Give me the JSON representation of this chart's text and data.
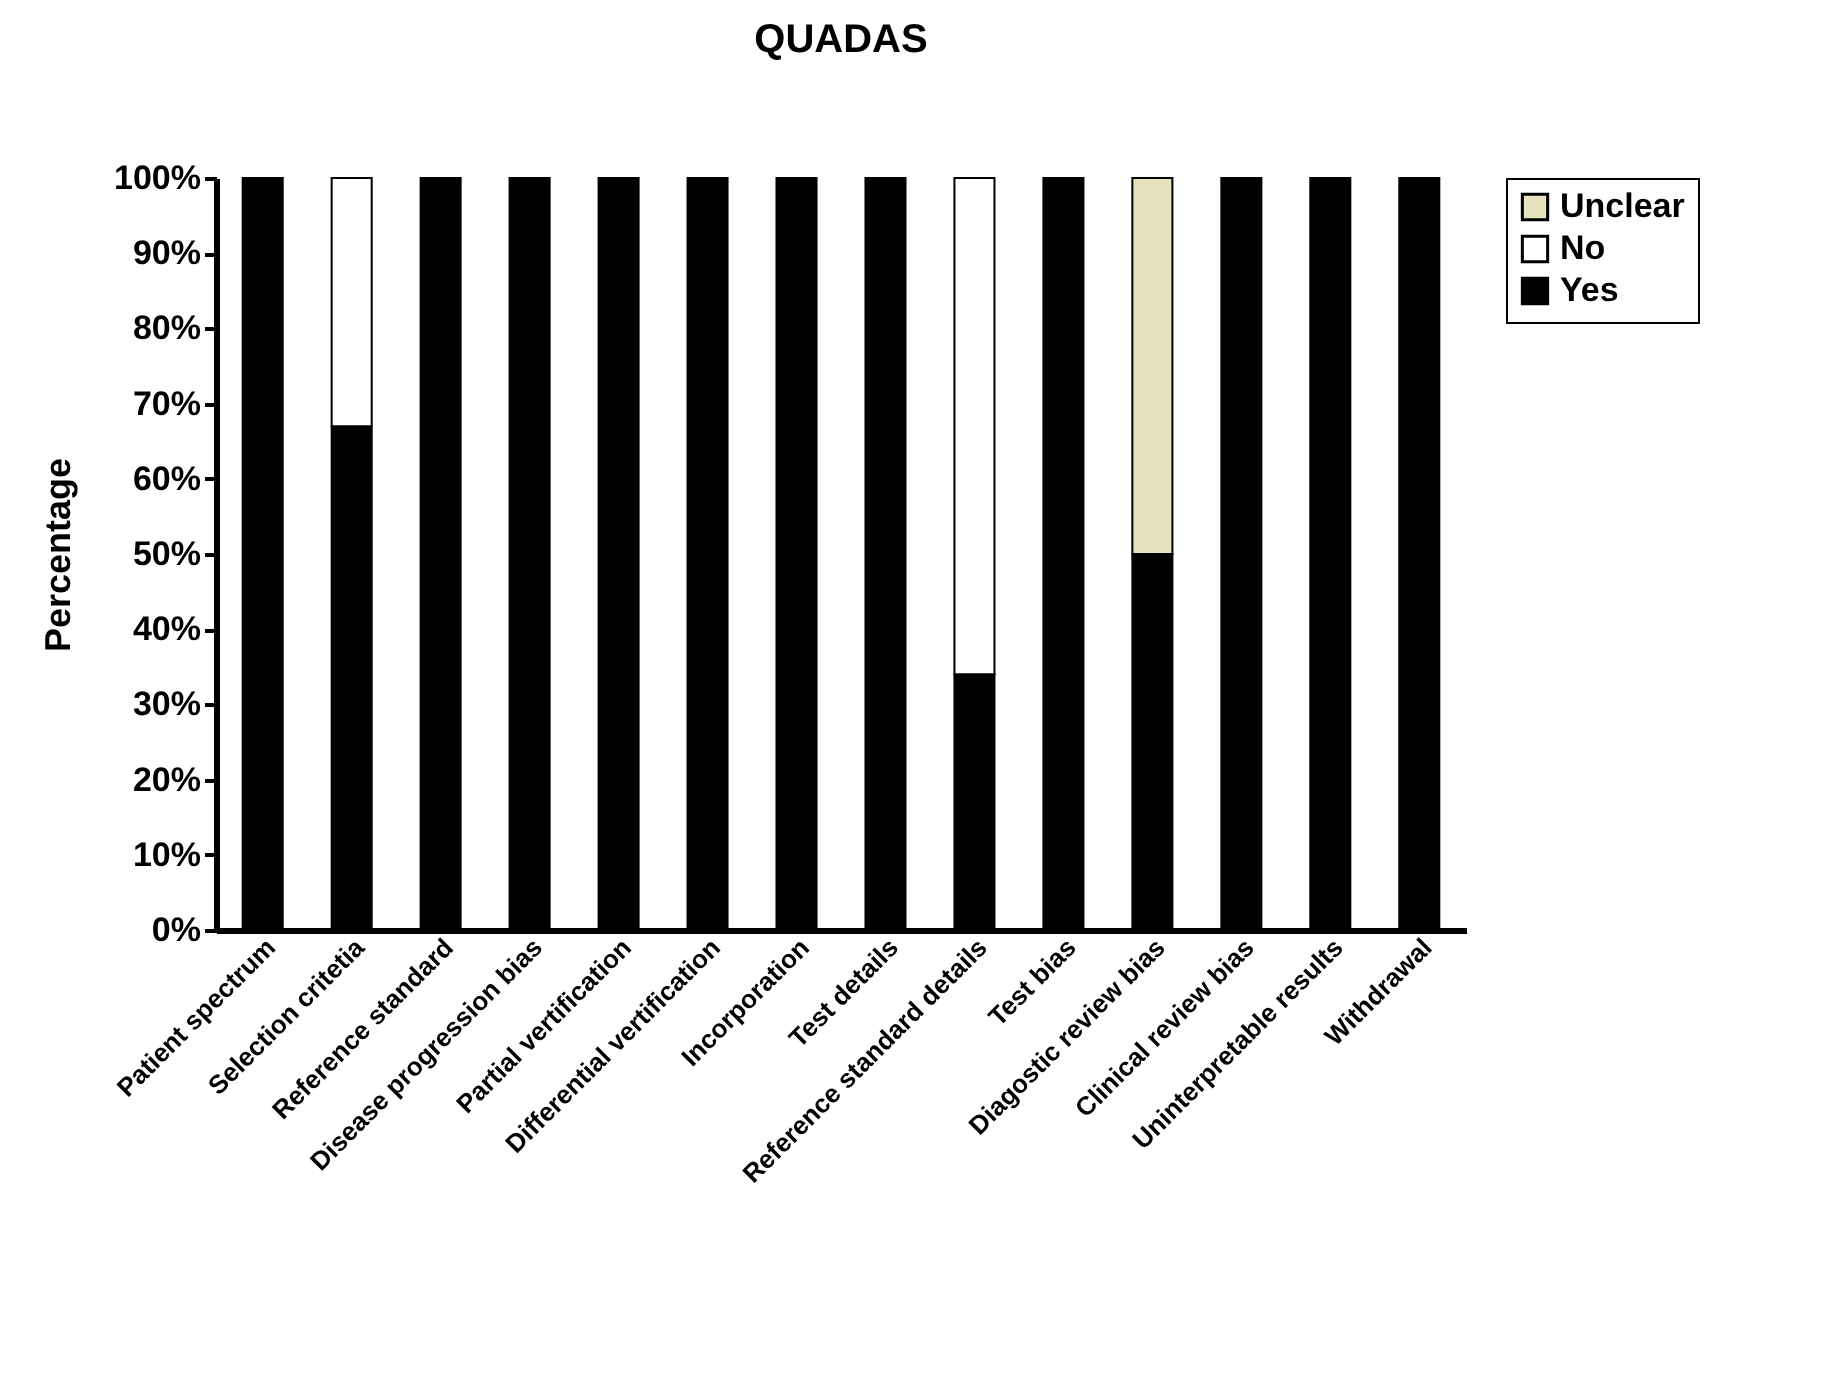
{
  "chart_data": {
    "type": "bar",
    "title": "QUADAS",
    "ylabel": "Percentage",
    "stacked": true,
    "legend": "right",
    "grid": false,
    "categories": [
      "Patient spectrum",
      "Selection critetia",
      "Reference standard",
      "Disease progression bias",
      "Partial vertification",
      "Differential vertification",
      "Incorporation",
      "Test details",
      "Reference standard details",
      "Test bias",
      "Diagostic review bias",
      "Clinical review bias",
      "Uninterpretable results",
      "Withdrawal"
    ],
    "series": [
      {
        "name": "Yes",
        "color": "#000000",
        "values": [
          100,
          67,
          100,
          100,
          100,
          100,
          100,
          100,
          34,
          100,
          50,
          100,
          100,
          100
        ]
      },
      {
        "name": "No",
        "color": "#ffffff",
        "values": [
          null,
          33,
          null,
          null,
          null,
          null,
          null,
          null,
          66,
          null,
          null,
          null,
          null,
          null
        ]
      },
      {
        "name": "Unclear",
        "color": "#e6e2bd",
        "values": [
          null,
          null,
          null,
          null,
          null,
          null,
          null,
          null,
          null,
          null,
          50,
          null,
          null,
          null
        ]
      }
    ],
    "ylim": [
      0,
      100
    ],
    "yticks": [
      {
        "value": 0,
        "label": "0%"
      },
      {
        "value": 10,
        "label": "10%"
      },
      {
        "value": 20,
        "label": "20%"
      },
      {
        "value": 30,
        "label": "30%"
      },
      {
        "value": 40,
        "label": "40%"
      },
      {
        "value": 50,
        "label": "50%"
      },
      {
        "value": 60,
        "label": "60%"
      },
      {
        "value": 70,
        "label": "70%"
      },
      {
        "value": 80,
        "label": "80%"
      },
      {
        "value": 90,
        "label": "90%"
      },
      {
        "value": 100,
        "label": "100%"
      }
    ]
  }
}
